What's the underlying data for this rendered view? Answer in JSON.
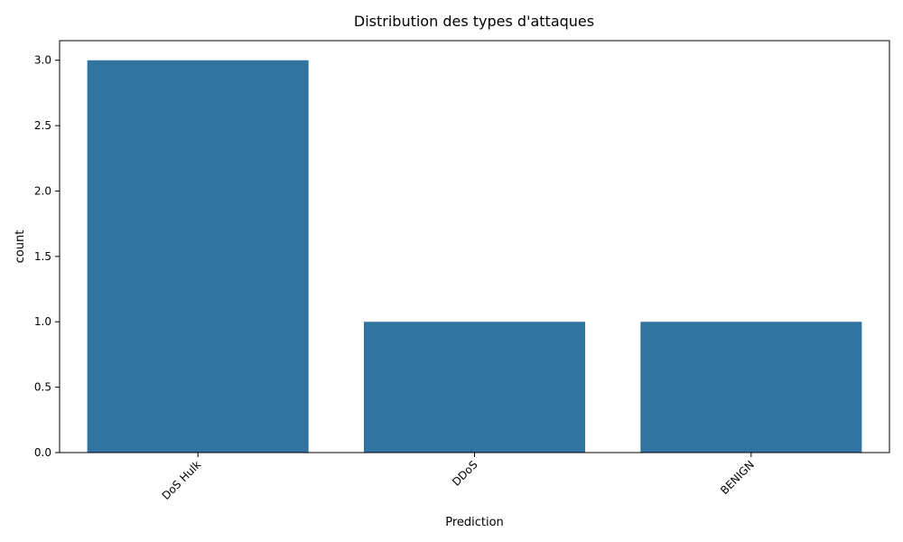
{
  "chart_data": {
    "type": "bar",
    "title": "Distribution des types d'attaques",
    "xlabel": "Prediction",
    "ylabel": "count",
    "categories": [
      "DoS Hulk",
      "DDoS",
      "BENIGN"
    ],
    "values": [
      3,
      1,
      1
    ],
    "ylim": [
      0,
      3.15
    ],
    "yticks": [
      "0.0",
      "0.5",
      "1.0",
      "1.5",
      "2.0",
      "2.5",
      "3.0"
    ],
    "grid": false,
    "legend": "none",
    "bar_color": "#3274a1",
    "xtick_rotation": 45
  }
}
